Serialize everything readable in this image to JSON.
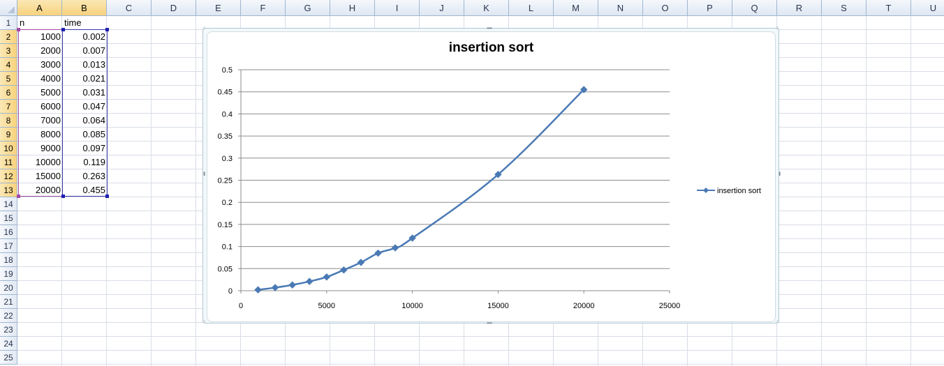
{
  "columns": [
    "A",
    "B",
    "C",
    "D",
    "E",
    "F",
    "G",
    "H",
    "I",
    "J",
    "K",
    "L",
    "M",
    "N",
    "O",
    "P",
    "Q",
    "R",
    "S",
    "T",
    "U"
  ],
  "rows": [
    "1",
    "2",
    "3",
    "4",
    "5",
    "6",
    "7",
    "8",
    "9",
    "10",
    "11",
    "12",
    "13",
    "14",
    "15",
    "16",
    "17",
    "18",
    "19",
    "20",
    "21",
    "22",
    "23",
    "24",
    "25"
  ],
  "sheet": {
    "header_n": "n",
    "header_time": "time",
    "n_values": [
      "1000",
      "2000",
      "3000",
      "4000",
      "5000",
      "6000",
      "7000",
      "8000",
      "9000",
      "10000",
      "15000",
      "20000"
    ],
    "time_values": [
      "0.002",
      "0.007",
      "0.013",
      "0.021",
      "0.031",
      "0.047",
      "0.064",
      "0.085",
      "0.097",
      "0.119",
      "0.263",
      "0.455"
    ]
  },
  "chart_data": {
    "type": "line",
    "title": "insertion sort",
    "series": [
      {
        "name": "insertion sort",
        "color": "#4a7ab5",
        "marker": "diamond",
        "x": [
          1000,
          2000,
          3000,
          4000,
          5000,
          6000,
          7000,
          8000,
          9000,
          10000,
          15000,
          20000
        ],
        "y": [
          0.002,
          0.007,
          0.013,
          0.021,
          0.031,
          0.047,
          0.064,
          0.085,
          0.097,
          0.119,
          0.263,
          0.455
        ]
      }
    ],
    "xlim": [
      0,
      25000
    ],
    "ylim": [
      0,
      0.5
    ],
    "x_ticks": [
      "0",
      "5000",
      "10000",
      "15000",
      "20000",
      "25000"
    ],
    "y_ticks": [
      "0",
      "0.05",
      "0.1",
      "0.15",
      "0.2",
      "0.25",
      "0.3",
      "0.35",
      "0.4",
      "0.45",
      "0.5"
    ],
    "grid": "horizontal",
    "legend": "right"
  }
}
